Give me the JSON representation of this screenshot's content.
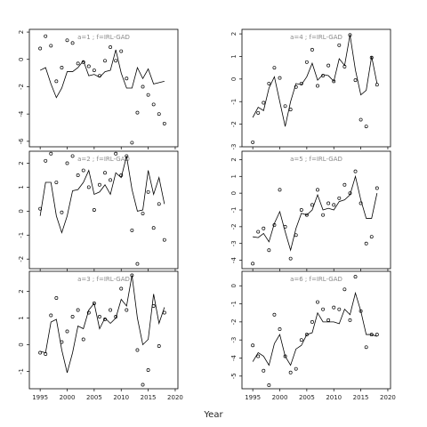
{
  "xlabel": "Year",
  "chart_data": [
    {
      "type": "line",
      "title": "a=1 ; f=IRL-GAD",
      "x": [
        1995,
        1996,
        1997,
        1998,
        1999,
        2000,
        2001,
        2002,
        2003,
        2004,
        2005,
        2006,
        2007,
        2008,
        2009,
        2010,
        2011,
        2012,
        2013,
        2014,
        2015,
        2016,
        2017,
        2018
      ],
      "xlim": [
        1993,
        2020.5
      ],
      "xticks": [
        1995,
        2000,
        2005,
        2010,
        2015,
        2020
      ],
      "ylim": [
        -6.4,
        2.2
      ],
      "yticks": [
        -6,
        -4,
        -2,
        0,
        2
      ],
      "series": [
        {
          "style": "points",
          "color": "#000000",
          "values": [
            0.8,
            1.7,
            1.0,
            -1.6,
            -0.6,
            1.4,
            1.2,
            -0.3,
            -0.2,
            -0.5,
            -0.8,
            -1.2,
            -0.1,
            0.9,
            -0.1,
            0.6,
            -1.4,
            -6.1,
            -3.9,
            -2.0,
            -2.6,
            -3.3,
            -4.0,
            -4.7
          ]
        },
        {
          "style": "line",
          "color": "#000000",
          "values": [
            -0.8,
            -0.6,
            -1.8,
            -2.8,
            -2.1,
            -0.9,
            -0.9,
            -0.6,
            -0.1,
            -1.2,
            -1.1,
            -1.3,
            -0.9,
            -0.8,
            0.7,
            -1.0,
            -2.1,
            -2.1,
            -0.6,
            -1.4,
            -0.7,
            -1.8,
            -1.7,
            -1.6
          ]
        }
      ]
    },
    {
      "type": "line",
      "title": "a=2 ; f=IRL-GAD",
      "x": [
        1995,
        1996,
        1997,
        1998,
        1999,
        2000,
        2001,
        2002,
        2003,
        2004,
        2005,
        2006,
        2007,
        2008,
        2009,
        2010,
        2011,
        2012,
        2013,
        2014,
        2015,
        2016,
        2017,
        2018
      ],
      "xlim": [
        1993,
        2020.5
      ],
      "xticks": [
        1995,
        2000,
        2005,
        2010,
        2015,
        2020
      ],
      "ylim": [
        -2.4,
        2.5
      ],
      "yticks": [
        -2,
        -1,
        0,
        1,
        2
      ],
      "series": [
        {
          "style": "points",
          "color": "#000000",
          "values": [
            0.1,
            2.1,
            2.4,
            1.2,
            -0.05,
            2.0,
            2.3,
            1.5,
            1.7,
            1.0,
            0.05,
            1.1,
            1.6,
            1.3,
            2.4,
            1.5,
            2.3,
            -0.8,
            -2.2,
            -0.1,
            0.8,
            -0.7,
            0.3,
            -1.2
          ]
        },
        {
          "style": "line",
          "color": "#000000",
          "values": [
            -0.2,
            1.2,
            1.2,
            -0.2,
            -0.9,
            -0.2,
            0.85,
            0.9,
            1.2,
            1.7,
            0.7,
            0.8,
            1.1,
            0.7,
            1.6,
            1.4,
            2.3,
            0.9,
            0.0,
            0.05,
            1.7,
            0.7,
            1.4,
            0.3
          ]
        }
      ]
    },
    {
      "type": "line",
      "title": "a=3 ; f=IRL-GAD",
      "x": [
        1995,
        1996,
        1997,
        1998,
        1999,
        2000,
        2001,
        2002,
        2003,
        2004,
        2005,
        2006,
        2007,
        2008,
        2009,
        2010,
        2011,
        2012,
        2013,
        2014,
        2015,
        2016,
        2017,
        2018
      ],
      "xlim": [
        1993,
        2020.5
      ],
      "xticks": [
        1995,
        2000,
        2005,
        2010,
        2015,
        2020
      ],
      "ylim": [
        -1.65,
        2.75
      ],
      "yticks": [
        -1,
        0,
        1,
        2
      ],
      "series": [
        {
          "style": "points",
          "color": "#000000",
          "values": [
            -0.3,
            -0.35,
            1.1,
            1.75,
            0.1,
            0.5,
            1.05,
            1.3,
            0.2,
            1.2,
            1.55,
            1.05,
            0.95,
            1.3,
            1.05,
            2.1,
            1.3,
            2.6,
            -0.2,
            -1.5,
            -0.95,
            1.45,
            -0.05,
            1.2
          ]
        },
        {
          "style": "line",
          "color": "#000000",
          "values": [
            -0.25,
            -0.3,
            0.85,
            0.95,
            -0.2,
            -1.05,
            -0.3,
            0.7,
            0.6,
            1.3,
            1.55,
            0.6,
            1.0,
            0.8,
            1.0,
            1.7,
            1.45,
            2.6,
            1.0,
            0.0,
            0.2,
            1.9,
            0.8,
            1.4
          ]
        }
      ]
    },
    {
      "type": "line",
      "title": "a=4 ; f=IRL-GAD",
      "x": [
        1995,
        1996,
        1997,
        1998,
        1999,
        2000,
        2001,
        2002,
        2003,
        2004,
        2005,
        2006,
        2007,
        2008,
        2009,
        2010,
        2011,
        2012,
        2013,
        2014,
        2015,
        2016,
        2017,
        2018
      ],
      "xlim": [
        1993,
        2020.5
      ],
      "xticks": [
        1995,
        2000,
        2005,
        2010,
        2015,
        2020
      ],
      "ylim": [
        -3.0,
        2.2
      ],
      "yticks": [
        -3,
        -2,
        -1,
        0,
        1,
        2
      ],
      "series": [
        {
          "style": "points",
          "color": "#000000",
          "values": [
            -2.8,
            -1.5,
            -1.05,
            -0.2,
            0.5,
            0.05,
            -1.2,
            -1.35,
            -0.35,
            -0.2,
            0.75,
            1.3,
            -0.3,
            0.15,
            0.6,
            -0.1,
            1.5,
            0.55,
            1.95,
            -0.05,
            -1.8,
            -2.1,
            0.95,
            -0.25
          ]
        },
        {
          "style": "line",
          "color": "#000000",
          "values": [
            -1.7,
            -1.25,
            -1.4,
            -0.4,
            0.1,
            -1.0,
            -2.1,
            -1.0,
            -0.2,
            -0.25,
            0.1,
            0.7,
            -0.05,
            0.2,
            0.15,
            -0.1,
            0.9,
            0.6,
            1.95,
            0.4,
            -0.7,
            -0.5,
            1.0,
            -0.2
          ]
        }
      ]
    },
    {
      "type": "line",
      "title": "a=5 ; f=IRL-GAD",
      "x": [
        1995,
        1996,
        1997,
        1998,
        1999,
        2000,
        2001,
        2002,
        2003,
        2004,
        2005,
        2006,
        2007,
        2008,
        2009,
        2010,
        2011,
        2012,
        2013,
        2014,
        2015,
        2016,
        2017,
        2018
      ],
      "xlim": [
        1993,
        2020.5
      ],
      "xticks": [
        1995,
        2000,
        2005,
        2010,
        2015,
        2020
      ],
      "ylim": [
        -4.5,
        2.5
      ],
      "yticks": [
        -4,
        -3,
        -2,
        -1,
        0,
        1,
        2
      ],
      "series": [
        {
          "style": "points",
          "color": "#000000",
          "values": [
            -4.2,
            -2.3,
            -2.1,
            -3.4,
            -1.9,
            0.2,
            -2.0,
            -3.9,
            -2.5,
            -1.0,
            -1.3,
            -0.7,
            0.2,
            -1.3,
            -0.6,
            -0.7,
            -0.3,
            0.5,
            0.0,
            1.3,
            -0.6,
            -3.0,
            -2.6,
            0.3
          ]
        },
        {
          "style": "line",
          "color": "#000000",
          "values": [
            -2.6,
            -2.65,
            -2.4,
            -2.9,
            -1.8,
            -1.1,
            -2.3,
            -3.4,
            -2.1,
            -1.2,
            -1.3,
            -1.0,
            -0.1,
            -1.0,
            -0.9,
            -1.0,
            -0.5,
            -0.4,
            -0.1,
            1.0,
            -0.4,
            -1.5,
            -1.5,
            0.0
          ]
        }
      ]
    },
    {
      "type": "line",
      "title": "a=6 ; f=IRL-GAD",
      "x": [
        1995,
        1996,
        1997,
        1998,
        1999,
        2000,
        2001,
        2002,
        2003,
        2004,
        2005,
        2006,
        2007,
        2008,
        2009,
        2010,
        2011,
        2012,
        2013,
        2014,
        2015,
        2016,
        2017,
        2018
      ],
      "xlim": [
        1993,
        2020.5
      ],
      "xticks": [
        1995,
        2000,
        2005,
        2010,
        2015,
        2020
      ],
      "ylim": [
        -5.7,
        0.8
      ],
      "yticks": [
        -5,
        -4,
        -3,
        -2,
        -1,
        0
      ],
      "series": [
        {
          "style": "points",
          "color": "#000000",
          "values": [
            -3.3,
            -3.9,
            -4.7,
            -5.5,
            -1.6,
            -2.4,
            -3.9,
            -4.8,
            -4.6,
            -3.0,
            -2.7,
            -2.0,
            -0.9,
            -1.3,
            -1.9,
            -1.2,
            -1.3,
            -0.2,
            -1.9,
            0.5,
            -1.4,
            -3.4,
            -2.7,
            -2.7
          ]
        },
        {
          "style": "line",
          "color": "#000000",
          "values": [
            -4.2,
            -3.7,
            -3.9,
            -4.4,
            -3.2,
            -2.7,
            -3.9,
            -4.4,
            -3.5,
            -3.3,
            -2.7,
            -2.6,
            -1.5,
            -2.0,
            -2.0,
            -2.0,
            -2.1,
            -1.3,
            -1.6,
            -0.4,
            -1.4,
            -2.7,
            -2.7,
            -2.8
          ]
        }
      ]
    }
  ]
}
